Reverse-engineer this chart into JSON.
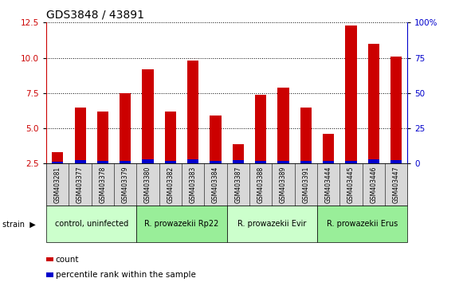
{
  "title": "GDS3848 / 43891",
  "samples": [
    "GSM403281",
    "GSM403377",
    "GSM403378",
    "GSM403379",
    "GSM403380",
    "GSM403382",
    "GSM403383",
    "GSM403384",
    "GSM403387",
    "GSM403388",
    "GSM403389",
    "GSM403391",
    "GSM403444",
    "GSM403445",
    "GSM403446",
    "GSM403447"
  ],
  "count_values": [
    3.3,
    6.5,
    6.2,
    7.5,
    9.2,
    6.2,
    9.8,
    5.9,
    3.9,
    7.4,
    7.9,
    6.5,
    4.6,
    12.3,
    11.0,
    10.1
  ],
  "blue_values": [
    0.15,
    0.22,
    0.2,
    0.2,
    0.28,
    0.2,
    0.28,
    0.2,
    0.22,
    0.2,
    0.2,
    0.2,
    0.2,
    0.2,
    0.28,
    0.22
  ],
  "groups": [
    {
      "label": "control, uninfected",
      "start": 0,
      "end": 4,
      "color": "#ccffcc"
    },
    {
      "label": "R. prowazekii Rp22",
      "start": 4,
      "end": 8,
      "color": "#99ee99"
    },
    {
      "label": "R. prowazekii Evir",
      "start": 8,
      "end": 12,
      "color": "#ccffcc"
    },
    {
      "label": "R. prowazekii Erus",
      "start": 12,
      "end": 16,
      "color": "#99ee99"
    }
  ],
  "bar_color": "#cc0000",
  "blue_color": "#0000cc",
  "ylim_left": [
    2.5,
    12.5
  ],
  "ylim_right": [
    0,
    100
  ],
  "yticks_left": [
    2.5,
    5.0,
    7.5,
    10.0,
    12.5
  ],
  "yticks_right": [
    0,
    25,
    50,
    75,
    100
  ],
  "ytick_labels_right": [
    "0",
    "25",
    "50",
    "75",
    "100%"
  ],
  "ylabel_left_color": "#cc0000",
  "ylabel_right_color": "#0000cc",
  "legend_count": "count",
  "legend_percentile": "percentile rank within the sample",
  "strain_label": "strain",
  "bar_width": 0.5,
  "tick_label_color": "#333333",
  "grid_color": "#000000",
  "gray_bg": "#d8d8d8"
}
